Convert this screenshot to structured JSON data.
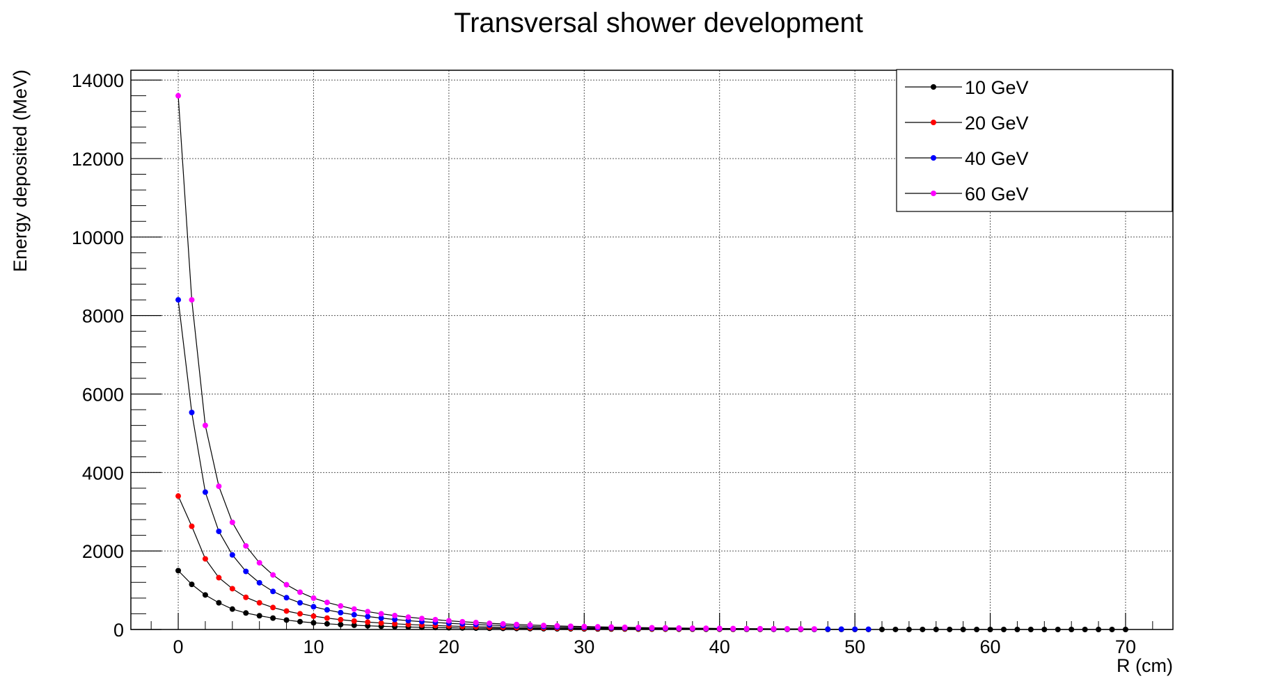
{
  "chart_data": {
    "type": "line",
    "title": "Transversal shower development",
    "xlabel": "R (cm)",
    "ylabel": "Energy deposited (MeV)",
    "xlim": [
      -3.5,
      73.5
    ],
    "ylim": [
      0,
      14250
    ],
    "x_ticks": [
      0,
      10,
      20,
      30,
      40,
      50,
      60,
      70
    ],
    "y_ticks": [
      0,
      2000,
      4000,
      6000,
      8000,
      10000,
      12000,
      14000
    ],
    "grid": true,
    "legend_position": "top-right",
    "line_color": "#000000",
    "series": [
      {
        "name": "10 GeV",
        "color": "#000000",
        "x": [
          0,
          1,
          2,
          3,
          4,
          5,
          6,
          7,
          8,
          9,
          10,
          11,
          12,
          13,
          14,
          15,
          16,
          17,
          18,
          19,
          20,
          21,
          22,
          23,
          24,
          25,
          26,
          27,
          28,
          29,
          30,
          31,
          32,
          33,
          34,
          35,
          36,
          37,
          38,
          39,
          40,
          41,
          42,
          43,
          44,
          45,
          46,
          47,
          48,
          49,
          50,
          51,
          52,
          53,
          54,
          55,
          56,
          57,
          58,
          59,
          60,
          61,
          62,
          63,
          64,
          65,
          66,
          67,
          68,
          69,
          70
        ],
        "values": [
          1500,
          1150,
          880,
          680,
          520,
          420,
          350,
          290,
          240,
          200,
          170,
          145,
          125,
          108,
          94,
          82,
          72,
          63,
          56,
          50,
          44,
          39,
          35,
          31,
          28,
          25,
          22,
          20,
          18,
          16,
          14,
          13,
          11,
          10,
          9,
          8,
          7,
          6,
          6,
          5,
          5,
          4,
          4,
          3,
          3,
          3,
          2,
          2,
          2,
          2,
          1,
          1,
          1,
          1,
          1,
          1,
          1,
          1,
          0,
          0,
          0,
          0,
          0,
          0,
          0,
          0,
          0,
          0,
          0,
          0,
          0
        ]
      },
      {
        "name": "20 GeV",
        "color": "#ff0000",
        "x": [
          0,
          1,
          2,
          3,
          4,
          5,
          6,
          7,
          8,
          9,
          10,
          11,
          12,
          13,
          14,
          15,
          16,
          17,
          18,
          19,
          20,
          21,
          22,
          23,
          24,
          25,
          26,
          27,
          28,
          29,
          30,
          31,
          32,
          33,
          34,
          35,
          36,
          37,
          38,
          39,
          40,
          41,
          42,
          43,
          44,
          45,
          46,
          47
        ],
        "values": [
          3400,
          2630,
          1800,
          1320,
          1040,
          820,
          680,
          560,
          470,
          400,
          340,
          290,
          250,
          215,
          188,
          165,
          145,
          127,
          112,
          100,
          89,
          79,
          70,
          62,
          56,
          50,
          44,
          40,
          36,
          32,
          29,
          26,
          23,
          21,
          19,
          17,
          15,
          13,
          12,
          11,
          10,
          9,
          8,
          7,
          6,
          6,
          5,
          5
        ]
      },
      {
        "name": "40 GeV",
        "color": "#0000ff",
        "x": [
          0,
          1,
          2,
          3,
          4,
          5,
          6,
          7,
          8,
          9,
          10,
          11,
          12,
          13,
          14,
          15,
          16,
          17,
          18,
          19,
          20,
          21,
          22,
          23,
          24,
          25,
          26,
          27,
          28,
          29,
          30,
          31,
          32,
          33,
          34,
          35,
          36,
          37,
          38,
          39,
          40,
          41,
          42,
          43,
          44,
          45,
          46,
          47,
          48,
          49,
          50,
          51
        ],
        "values": [
          8400,
          5530,
          3500,
          2500,
          1900,
          1480,
          1190,
          970,
          810,
          680,
          580,
          500,
          430,
          375,
          330,
          290,
          255,
          225,
          200,
          178,
          158,
          141,
          126,
          112,
          100,
          90,
          80,
          72,
          65,
          58,
          52,
          47,
          42,
          38,
          34,
          31,
          28,
          25,
          23,
          21,
          19,
          17,
          15,
          14,
          12,
          11,
          10,
          9,
          8,
          8,
          7,
          6
        ]
      },
      {
        "name": "60 GeV",
        "color": "#ff00ff",
        "x": [
          0,
          1,
          2,
          3,
          4,
          5,
          6,
          7,
          8,
          9,
          10,
          11,
          12,
          13,
          14,
          15,
          16,
          17,
          18,
          19,
          20,
          21,
          22,
          23,
          24,
          25,
          26,
          27,
          28,
          29,
          30,
          31,
          32,
          33,
          34,
          35,
          36,
          37,
          38,
          39,
          40,
          41,
          42,
          43,
          44,
          45,
          46,
          47
        ],
        "values": [
          13600,
          8400,
          5200,
          3650,
          2730,
          2130,
          1700,
          1390,
          1140,
          950,
          800,
          690,
          600,
          520,
          455,
          400,
          355,
          315,
          280,
          250,
          222,
          198,
          177,
          158,
          142,
          127,
          114,
          102,
          92,
          83,
          75,
          68,
          61,
          55,
          50,
          45,
          41,
          37,
          34,
          31,
          28,
          25,
          23,
          21,
          19,
          17,
          16,
          14
        ]
      }
    ]
  }
}
